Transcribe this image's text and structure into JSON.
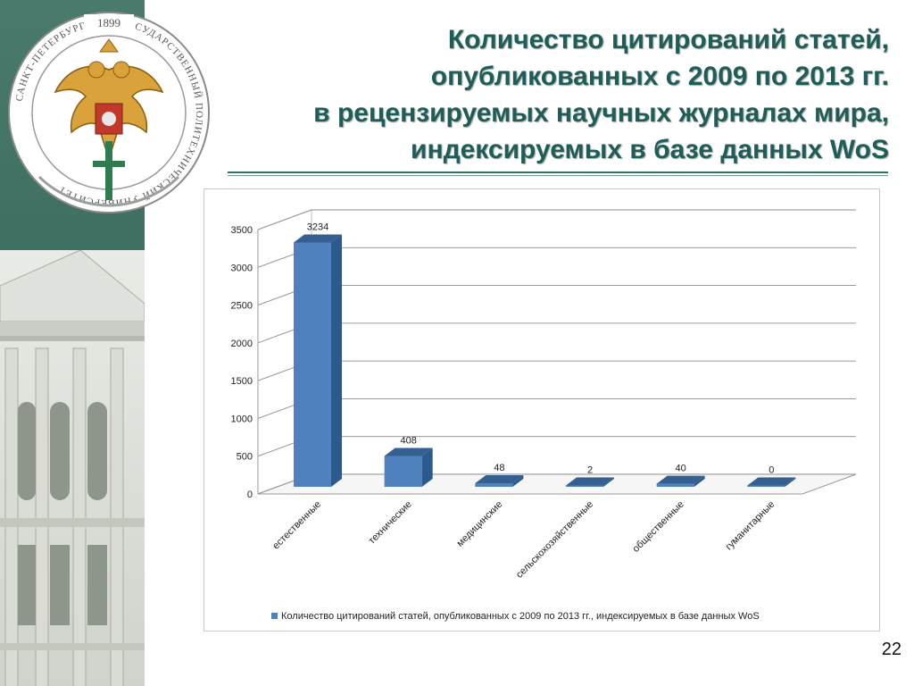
{
  "slide": {
    "title_lines": [
      "Количество цитирований статей,",
      "опубликованных с 2009 по 2013 гг.",
      "в рецензируемых научных журналах мира,",
      "индексируемых в базе данных WoS"
    ],
    "page_number": "22",
    "emblem": {
      "year": "1899",
      "ring_text": "САНКТ-ПЕТЕРБУРГСКИЙ ГОСУДАРСТВЕННЫЙ ПОЛИТЕХНИЧЕСКИЙ УНИВЕРСИТЕТ"
    },
    "colors": {
      "sidebar": "#3e6e60",
      "title": "#1f5d58",
      "bar_front": "#4f81bd",
      "bar_side": "#2d5a8e",
      "bar_top": "#355f91"
    }
  },
  "chart_data": {
    "type": "bar",
    "categories": [
      "естественные",
      "технические",
      "медицинские",
      "сельскохозяйственные",
      "общественные",
      "гуманитарные"
    ],
    "series": [
      {
        "name": "Количество цитирований статей, опубликованных с 2009 по 2013 гг., индексируемых в базе данных WoS",
        "values": [
          3234,
          408,
          48,
          2,
          40,
          0
        ]
      }
    ],
    "y_ticks": [
      0,
      500,
      1000,
      1500,
      2000,
      2500,
      3000,
      3500
    ],
    "ylim": [
      0,
      3500
    ],
    "grid": true,
    "legend": "bottom",
    "style": "3d-column"
  }
}
